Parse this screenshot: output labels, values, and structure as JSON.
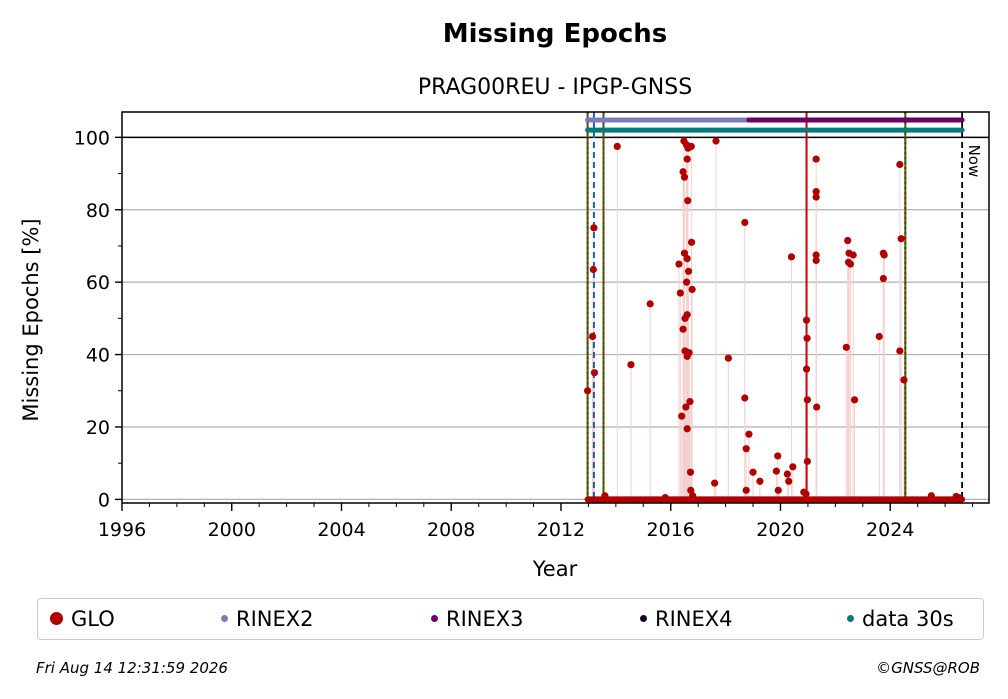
{
  "chart_data": {
    "type": "scatter",
    "title": "Missing Epochs",
    "subtitle": "PRAG00REU - IPGP-GNSS",
    "xlabel": "Year",
    "ylabel": "Missing Epochs [%]",
    "xlim": [
      1996,
      2027.6
    ],
    "ylim": [
      -1,
      107
    ],
    "x_ticks": [
      "1996",
      "2000",
      "2004",
      "2008",
      "2012",
      "2016",
      "2020",
      "2024"
    ],
    "y_ticks": [
      "0",
      "20",
      "40",
      "60",
      "80",
      "100"
    ],
    "grid": true,
    "now_label": "Now",
    "now_x": 2026.62,
    "vertical_lines": [
      {
        "x": 2012.97,
        "color": "#008000",
        "style": "solid"
      },
      {
        "x": 2012.97,
        "color": "#cc0000",
        "style": "dotted"
      },
      {
        "x": 2013.2,
        "color": "#1f5f9f",
        "style": "dashed"
      },
      {
        "x": 2013.55,
        "color": "#008000",
        "style": "solid"
      },
      {
        "x": 2013.55,
        "color": "#cc0000",
        "style": "dotted"
      },
      {
        "x": 2020.95,
        "color": "#cc0000",
        "style": "solid"
      },
      {
        "x": 2024.55,
        "color": "#008000",
        "style": "solid"
      },
      {
        "x": 2024.55,
        "color": "#cc0000",
        "style": "dotted"
      }
    ],
    "bands": [
      {
        "name": "RINEX2",
        "color": "#7b7bbf",
        "y": 104.8,
        "start": 2012.97,
        "end": 2018.85
      },
      {
        "name": "RINEX3",
        "color": "#6a0068",
        "y": 104.8,
        "start": 2018.85,
        "end": 2026.62
      },
      {
        "name": "data 30s",
        "color": "#007b7b",
        "y": 102.0,
        "start": 2012.97,
        "end": 2026.62
      }
    ],
    "zero_run": {
      "start": 2012.97,
      "end": 2026.62,
      "y": 0
    },
    "series": [
      {
        "name": "GLO",
        "color": "#b00000",
        "points": [
          [
            2012.97,
            30
          ],
          [
            2013.15,
            45
          ],
          [
            2013.18,
            63.5
          ],
          [
            2013.2,
            75
          ],
          [
            2013.22,
            35
          ],
          [
            2013.6,
            1
          ],
          [
            2014.05,
            97.5
          ],
          [
            2014.55,
            37.2
          ],
          [
            2015.25,
            54
          ],
          [
            2015.8,
            0.5
          ],
          [
            2016.3,
            65
          ],
          [
            2016.35,
            57
          ],
          [
            2016.4,
            23
          ],
          [
            2016.45,
            90.5
          ],
          [
            2016.45,
            47
          ],
          [
            2016.48,
            99
          ],
          [
            2016.5,
            89
          ],
          [
            2016.5,
            68
          ],
          [
            2016.52,
            50
          ],
          [
            2016.52,
            41
          ],
          [
            2016.55,
            25.5
          ],
          [
            2016.57,
            98
          ],
          [
            2016.58,
            60
          ],
          [
            2016.6,
            94
          ],
          [
            2016.6,
            66.5
          ],
          [
            2016.6,
            51
          ],
          [
            2016.6,
            39.5
          ],
          [
            2016.6,
            19.5
          ],
          [
            2016.62,
            82.5
          ],
          [
            2016.63,
            97
          ],
          [
            2016.65,
            63
          ],
          [
            2016.67,
            40.5
          ],
          [
            2016.7,
            27
          ],
          [
            2016.72,
            7.5
          ],
          [
            2016.73,
            2.5
          ],
          [
            2016.75,
            97.5
          ],
          [
            2016.76,
            71
          ],
          [
            2016.78,
            58
          ],
          [
            2016.8,
            1
          ],
          [
            2017.6,
            4.5
          ],
          [
            2017.65,
            99
          ],
          [
            2018.1,
            39
          ],
          [
            2018.7,
            76.5
          ],
          [
            2018.7,
            28
          ],
          [
            2018.75,
            14
          ],
          [
            2018.75,
            2.5
          ],
          [
            2018.85,
            18
          ],
          [
            2019.0,
            7.5
          ],
          [
            2019.25,
            5
          ],
          [
            2019.85,
            7.8
          ],
          [
            2019.9,
            12
          ],
          [
            2019.92,
            2.5
          ],
          [
            2020.25,
            7
          ],
          [
            2020.3,
            5
          ],
          [
            2020.4,
            67
          ],
          [
            2020.45,
            9
          ],
          [
            2020.85,
            2
          ],
          [
            2020.93,
            1.5
          ],
          [
            2020.95,
            49.5
          ],
          [
            2020.95,
            36
          ],
          [
            2020.97,
            44.5
          ],
          [
            2020.98,
            27.5
          ],
          [
            2020.98,
            10.5
          ],
          [
            2021.3,
            94
          ],
          [
            2021.3,
            85
          ],
          [
            2021.3,
            83.5
          ],
          [
            2021.3,
            67.5
          ],
          [
            2021.3,
            66
          ],
          [
            2021.32,
            25.5
          ],
          [
            2022.4,
            42
          ],
          [
            2022.45,
            71.5
          ],
          [
            2022.48,
            65.5
          ],
          [
            2022.5,
            68
          ],
          [
            2022.55,
            65
          ],
          [
            2022.65,
            67.5
          ],
          [
            2022.7,
            27.5
          ],
          [
            2023.6,
            45
          ],
          [
            2023.75,
            68
          ],
          [
            2023.75,
            61
          ],
          [
            2023.78,
            67.5
          ],
          [
            2024.35,
            41
          ],
          [
            2024.35,
            92.5
          ],
          [
            2024.4,
            72
          ],
          [
            2024.5,
            33
          ],
          [
            2025.5,
            1
          ],
          [
            2026.4,
            0.8
          ],
          [
            2026.5,
            0.5
          ]
        ]
      }
    ],
    "legend": [
      {
        "label": "GLO",
        "color": "#b00000"
      },
      {
        "label": "RINEX2",
        "color": "#7b7bbf"
      },
      {
        "label": "RINEX3",
        "color": "#6a0068"
      },
      {
        "label": "RINEX4",
        "color": "#1a0022"
      },
      {
        "label": "data 30s",
        "color": "#007b7b"
      }
    ]
  },
  "footer": {
    "timestamp": "Fri Aug 14 12:31:59 2026",
    "copyright": "©GNSS@ROB"
  }
}
